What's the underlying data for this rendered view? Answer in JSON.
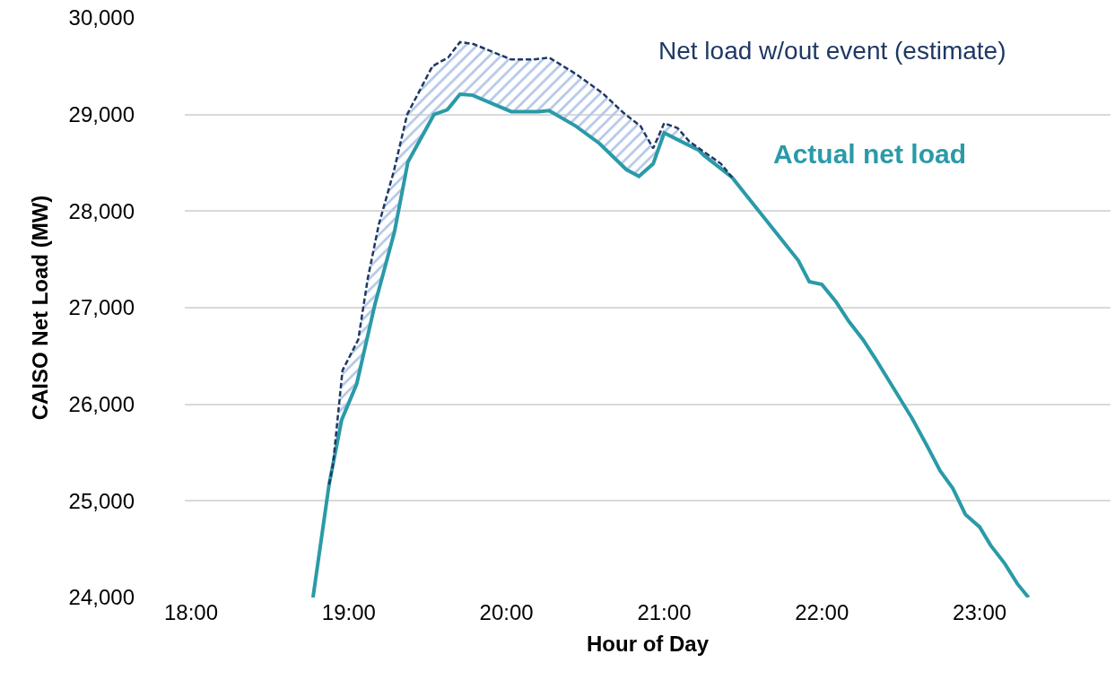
{
  "chart_data": {
    "type": "line",
    "xlabel": "Hour of Day",
    "ylabel": "CAISO Net Load (MW)",
    "xlim": [
      17.96,
      23.83
    ],
    "xticks": [
      {
        "value": 18,
        "label": "18:00"
      },
      {
        "value": 19,
        "label": "19:00"
      },
      {
        "value": 20,
        "label": "20:00"
      },
      {
        "value": 21,
        "label": "21:00"
      },
      {
        "value": 22,
        "label": "22:00"
      },
      {
        "value": 23,
        "label": "23:00"
      }
    ],
    "ylim": [
      24000,
      30000
    ],
    "yticks": [
      {
        "value": 24000,
        "label": "24,000"
      },
      {
        "value": 25000,
        "label": "25,000"
      },
      {
        "value": 26000,
        "label": "26,000"
      },
      {
        "value": 27000,
        "label": "27,000"
      },
      {
        "value": 28000,
        "label": "28,000"
      },
      {
        "value": 29000,
        "label": "29,000"
      },
      {
        "value": 30000,
        "label": "30,000"
      }
    ],
    "grid": "y",
    "legend": false,
    "marker": "none",
    "series": [
      {
        "name": "Actual net load",
        "color": "#2a9aa8",
        "line_style": "solid",
        "x": [
          18.773,
          18.875,
          18.955,
          19.05,
          19.165,
          19.29,
          19.375,
          19.54,
          19.625,
          19.705,
          19.785,
          20.03,
          20.2,
          20.27,
          20.44,
          20.59,
          20.76,
          20.84,
          20.93,
          21.0,
          21.22,
          21.25,
          21.43,
          21.6,
          21.85,
          21.92,
          22.0,
          22.09,
          22.17,
          22.26,
          22.34,
          22.57,
          22.67,
          22.75,
          22.83,
          22.91,
          23.0,
          23.07,
          23.16,
          23.24,
          23.31
        ],
        "values": [
          24000,
          25170,
          25840,
          26210,
          27030,
          27790,
          28510,
          29000,
          29050,
          29210,
          29200,
          29030,
          29030,
          29040,
          28880,
          28700,
          28430,
          28360,
          28490,
          28810,
          28630,
          28580,
          28350,
          28000,
          27490,
          27270,
          27240,
          27060,
          26860,
          26670,
          26470,
          25860,
          25560,
          25310,
          25130,
          24860,
          24730,
          24540,
          24350,
          24140,
          24000
        ]
      },
      {
        "name": "Net load w/out event (estimate)",
        "color": "#1f3864",
        "line_style": "dashed",
        "x": [
          18.875,
          18.9,
          18.96,
          19.06,
          19.12,
          19.19,
          19.285,
          19.37,
          19.53,
          19.63,
          19.705,
          19.79,
          20.03,
          20.17,
          20.27,
          20.44,
          20.61,
          20.74,
          20.85,
          20.93,
          21.0,
          21.085,
          21.16,
          21.36,
          21.43
        ],
        "values": [
          25170,
          25380,
          26350,
          26670,
          27300,
          27860,
          28410,
          29000,
          29500,
          29590,
          29750,
          29730,
          29570,
          29570,
          29590,
          29420,
          29220,
          29020,
          28880,
          28650,
          28910,
          28860,
          28720,
          28490,
          28350
        ],
        "upper": [
          25170,
          25380,
          26350,
          26670,
          27300,
          27860,
          28410,
          29000,
          29500,
          29590,
          29750,
          29730,
          29570,
          29570,
          29590,
          29420,
          29220,
          29020,
          28880,
          28650,
          28910,
          28860,
          28720,
          28490,
          28350
        ],
        "lower": [
          25170,
          25380,
          25870,
          26280,
          26700,
          27180,
          27760,
          28470,
          28970,
          29060,
          29210,
          29200,
          29030,
          29030,
          29040,
          28880,
          28670,
          28460,
          28370,
          28490,
          28810,
          28740,
          28680,
          28440,
          28350
        ]
      }
    ]
  }
}
